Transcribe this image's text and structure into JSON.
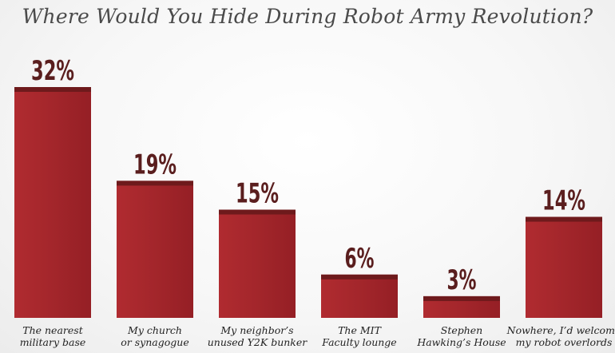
{
  "chart_data": {
    "type": "bar",
    "title": "Where Would You Hide During Robot Army Revolution?",
    "xlabel": "",
    "ylabel": "",
    "categories": [
      [
        "The nearest",
        "military base"
      ],
      [
        "My church",
        "or synagogue"
      ],
      [
        "My neighbor’s",
        "unused Y2K bunker"
      ],
      [
        "The MIT",
        "Faculty lounge"
      ],
      [
        "Stephen",
        "Hawking’s House"
      ],
      [
        "Nowhere, I’d welcome",
        "my robot overlords"
      ]
    ],
    "values": [
      32,
      19,
      15,
      6,
      3,
      14
    ],
    "value_labels": [
      "32%",
      "19%",
      "15%",
      "6%",
      "3%",
      "14%"
    ],
    "ylim": [
      0,
      32
    ],
    "grid": false,
    "legend": "none",
    "colors": {
      "bar": "#a3262b",
      "bar_top": "#6e1a1c",
      "value_text": "#5a1e1e",
      "category_text": "#222222",
      "title_text": "#4a4a4a"
    }
  }
}
